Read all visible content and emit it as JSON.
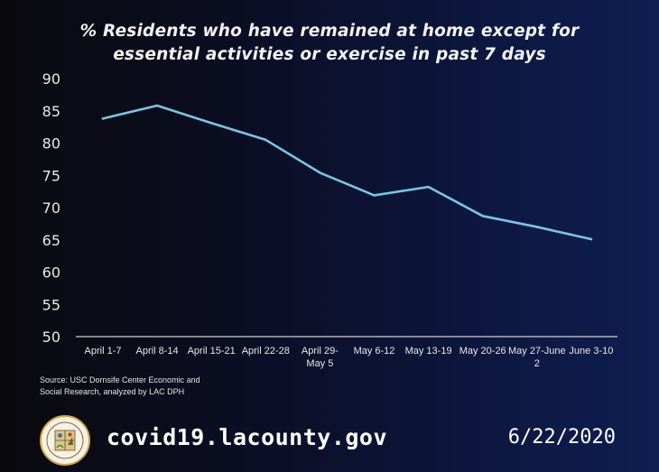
{
  "chart_data": {
    "type": "line",
    "title_lines": [
      "% Residents who have remained at home except for",
      "essential activities or exercise in past 7 days"
    ],
    "categories": [
      "April 1-7",
      "April 8-14",
      "April 15-21",
      "April 22-28",
      "April 29-May 5",
      "May 6-12",
      "May 13-19",
      "May 20-26",
      "May 27-June 2",
      "June 3-10"
    ],
    "category_lines": [
      [
        "April 1-7"
      ],
      [
        "April 8-14"
      ],
      [
        "April 15-21"
      ],
      [
        "April 22-28"
      ],
      [
        "April 29-",
        "May 5"
      ],
      [
        "May 6-12"
      ],
      [
        "May 13-19"
      ],
      [
        "May 20-26"
      ],
      [
        "May 27-June",
        "2"
      ],
      [
        "June 3-10"
      ]
    ],
    "series": [
      {
        "values": [
          83.8,
          85.8,
          83.1,
          80.5,
          75.4,
          71.9,
          73.2,
          68.7,
          67.0,
          65.1
        ]
      }
    ],
    "yticks": [
      50,
      55,
      60,
      65,
      70,
      75,
      80,
      85,
      90
    ],
    "ylim": [
      50,
      90
    ],
    "grid": false,
    "line_color": "#7ec3e3"
  },
  "source_lines": [
    "Source: USC Dornsife Center Economic and",
    "Social Research, analyzed by LAC DPH"
  ],
  "footer": {
    "website": "covid19.lacounty.gov",
    "date": "6/22/2020",
    "seal_icon": "la-county-seal-icon"
  }
}
